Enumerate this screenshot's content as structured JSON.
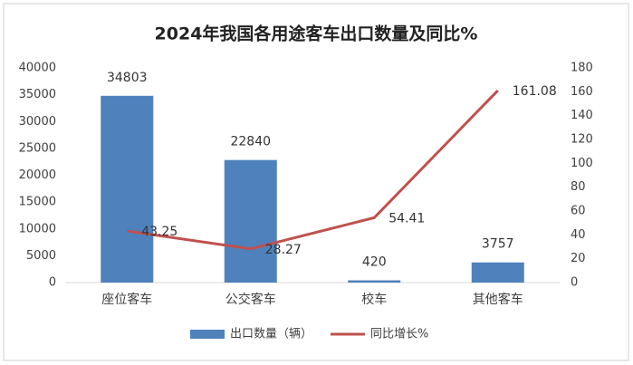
{
  "chart_data": {
    "type": "bar",
    "title": "2024年我国各用途客车出口数量及同比%",
    "categories": [
      "座位客车",
      "公交客车",
      "校车",
      "其他客车"
    ],
    "series": [
      {
        "name": "出口数量（辆）",
        "type": "bar",
        "color": "#4f81bd",
        "values": [
          34803,
          22840,
          420,
          3757
        ]
      },
      {
        "name": "同比增长%",
        "type": "line",
        "axis": "y2",
        "color": "#c0504d",
        "values": [
          43.25,
          28.27,
          54.41,
          161.08
        ]
      }
    ],
    "ylim": [
      0,
      40000
    ],
    "yticks": [
      0,
      5000,
      10000,
      15000,
      20000,
      25000,
      30000,
      35000,
      40000
    ],
    "y2lim": [
      0,
      180
    ],
    "y2ticks": [
      0,
      20,
      40,
      60,
      80,
      100,
      120,
      140,
      160,
      180
    ],
    "legend": "bottom"
  }
}
